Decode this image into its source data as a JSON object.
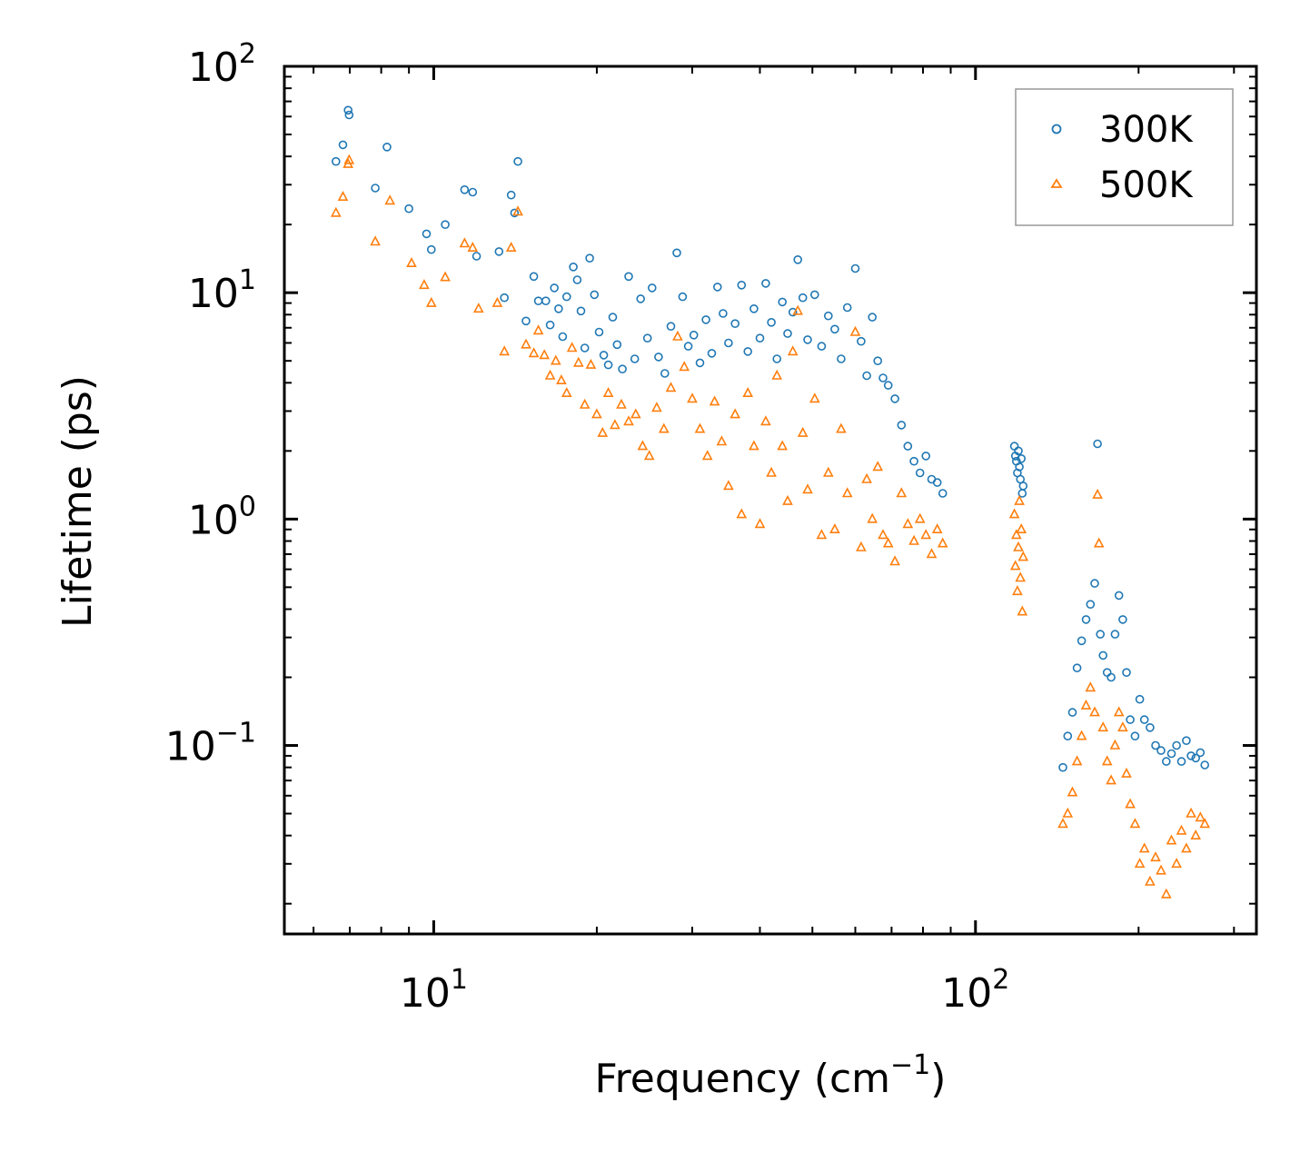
{
  "chart_data": {
    "type": "scatter",
    "title": "",
    "xlabel": "Frequency (cm",
    "xlabel_sup": "−1",
    "xlabel_end": ")",
    "ylabel": "Lifetime (ps)",
    "xscale": "log",
    "yscale": "log",
    "xlim": [
      5.3,
      330
    ],
    "ylim": [
      0.0147,
      100
    ],
    "grid": false,
    "legend_position": "top-right",
    "x_ticks": [
      {
        "value": 10,
        "base": "10",
        "exp": "1"
      },
      {
        "value": 100,
        "base": "10",
        "exp": "2"
      }
    ],
    "y_ticks": [
      {
        "value": 100,
        "base": "10",
        "exp": "2"
      },
      {
        "value": 10,
        "base": "10",
        "exp": "1"
      },
      {
        "value": 1,
        "base": "10",
        "exp": "0"
      },
      {
        "value": 0.1,
        "base": "10",
        "exp": "−1"
      }
    ],
    "series": [
      {
        "name": "300K",
        "color": "#1f77b4",
        "marker": "circle",
        "points": [
          [
            6.6,
            38
          ],
          [
            6.8,
            45
          ],
          [
            6.95,
            64
          ],
          [
            6.98,
            61
          ],
          [
            8.2,
            44
          ],
          [
            7.8,
            29
          ],
          [
            9.0,
            23.5
          ],
          [
            9.7,
            18.2
          ],
          [
            9.9,
            15.5
          ],
          [
            10.5,
            20
          ],
          [
            11.4,
            28.5
          ],
          [
            11.8,
            27.8
          ],
          [
            12.0,
            14.5
          ],
          [
            13.2,
            15.2
          ],
          [
            13.5,
            9.5
          ],
          [
            13.9,
            27
          ],
          [
            14.1,
            22.5
          ],
          [
            14.3,
            38
          ],
          [
            14.8,
            7.5
          ],
          [
            15.3,
            11.8
          ],
          [
            15.6,
            9.2
          ],
          [
            16.1,
            9.2
          ],
          [
            16.4,
            7.2
          ],
          [
            16.7,
            10.5
          ],
          [
            17.0,
            8.5
          ],
          [
            17.3,
            6.4
          ],
          [
            17.6,
            9.6
          ],
          [
            18.1,
            13
          ],
          [
            18.4,
            11.4
          ],
          [
            18.7,
            8.3
          ],
          [
            19.0,
            5.7
          ],
          [
            19.4,
            14.2
          ],
          [
            19.8,
            9.8
          ],
          [
            20.2,
            6.7
          ],
          [
            20.6,
            5.3
          ],
          [
            21.0,
            4.8
          ],
          [
            21.4,
            7.8
          ],
          [
            21.8,
            5.9
          ],
          [
            22.3,
            4.6
          ],
          [
            22.9,
            11.8
          ],
          [
            23.5,
            5.1
          ],
          [
            24.1,
            9.4
          ],
          [
            24.8,
            6.3
          ],
          [
            25.3,
            10.5
          ],
          [
            26.0,
            5.2
          ],
          [
            26.7,
            4.4
          ],
          [
            27.4,
            7.1
          ],
          [
            28.1,
            15
          ],
          [
            28.8,
            9.6
          ],
          [
            29.5,
            5.8
          ],
          [
            30.2,
            6.5
          ],
          [
            31.0,
            4.9
          ],
          [
            31.8,
            7.6
          ],
          [
            32.6,
            5.4
          ],
          [
            33.4,
            10.6
          ],
          [
            34.2,
            8.1
          ],
          [
            35.0,
            6.0
          ],
          [
            36.0,
            7.3
          ],
          [
            37.0,
            10.8
          ],
          [
            38.0,
            5.5
          ],
          [
            39.0,
            8.5
          ],
          [
            40.0,
            6.3
          ],
          [
            41.0,
            11
          ],
          [
            42.0,
            7.4
          ],
          [
            43.0,
            5.1
          ],
          [
            44.0,
            9.1
          ],
          [
            45.0,
            6.6
          ],
          [
            46.0,
            8.2
          ],
          [
            47.0,
            14
          ],
          [
            48.0,
            9.5
          ],
          [
            49.0,
            6.2
          ],
          [
            50.5,
            9.8
          ],
          [
            52.0,
            5.8
          ],
          [
            53.5,
            7.9
          ],
          [
            55.0,
            6.9
          ],
          [
            56.5,
            5.1
          ],
          [
            58.0,
            8.6
          ],
          [
            60.0,
            12.8
          ],
          [
            61.5,
            6.1
          ],
          [
            63.0,
            4.3
          ],
          [
            64.5,
            7.8
          ],
          [
            66.0,
            5.0
          ],
          [
            67.5,
            4.2
          ],
          [
            69.0,
            3.9
          ],
          [
            71.0,
            3.4
          ],
          [
            73.0,
            2.6
          ],
          [
            75.0,
            2.1
          ],
          [
            77.0,
            1.8
          ],
          [
            79.0,
            1.6
          ],
          [
            81.0,
            1.9
          ],
          [
            83.0,
            1.5
          ],
          [
            85.0,
            1.45
          ],
          [
            87.0,
            1.3
          ],
          [
            118,
            2.1
          ],
          [
            118.5,
            1.9
          ],
          [
            119,
            1.8
          ],
          [
            119.5,
            1.6
          ],
          [
            120,
            2.0
          ],
          [
            120.5,
            1.7
          ],
          [
            121,
            1.5
          ],
          [
            121.5,
            1.85
          ],
          [
            122,
            1.3
          ],
          [
            122.5,
            1.4
          ],
          [
            145,
            0.08
          ],
          [
            148,
            0.11
          ],
          [
            151,
            0.14
          ],
          [
            154,
            0.22
          ],
          [
            157,
            0.29
          ],
          [
            160,
            0.36
          ],
          [
            163,
            0.42
          ],
          [
            166,
            0.52
          ],
          [
            168,
            2.15
          ],
          [
            170,
            0.31
          ],
          [
            172,
            0.25
          ],
          [
            175,
            0.21
          ],
          [
            178,
            0.2
          ],
          [
            181,
            0.31
          ],
          [
            184,
            0.46
          ],
          [
            187,
            0.36
          ],
          [
            190,
            0.21
          ],
          [
            193,
            0.13
          ],
          [
            197,
            0.11
          ],
          [
            201,
            0.16
          ],
          [
            205,
            0.13
          ],
          [
            210,
            0.12
          ],
          [
            215,
            0.1
          ],
          [
            220,
            0.095
          ],
          [
            225,
            0.085
          ],
          [
            230,
            0.092
          ],
          [
            235,
            0.1
          ],
          [
            240,
            0.085
          ],
          [
            245,
            0.105
          ],
          [
            250,
            0.09
          ],
          [
            255,
            0.088
          ],
          [
            260,
            0.093
          ],
          [
            265,
            0.082
          ]
        ]
      },
      {
        "name": "500K",
        "color": "#ff7f0e",
        "marker": "triangle",
        "points": [
          [
            6.6,
            22.5
          ],
          [
            6.8,
            26.5
          ],
          [
            6.95,
            37
          ],
          [
            6.98,
            38.5
          ],
          [
            7.8,
            16.8
          ],
          [
            8.3,
            25.5
          ],
          [
            9.1,
            13.5
          ],
          [
            9.6,
            10.8
          ],
          [
            9.9,
            9.0
          ],
          [
            10.5,
            11.7
          ],
          [
            11.4,
            16.5
          ],
          [
            11.8,
            15.8
          ],
          [
            12.1,
            8.5
          ],
          [
            13.1,
            9.0
          ],
          [
            13.5,
            5.5
          ],
          [
            13.9,
            15.8
          ],
          [
            14.3,
            22.8
          ],
          [
            14.8,
            5.9
          ],
          [
            15.3,
            5.4
          ],
          [
            15.6,
            6.8
          ],
          [
            16.0,
            5.3
          ],
          [
            16.4,
            4.3
          ],
          [
            16.8,
            5.0
          ],
          [
            17.2,
            4.1
          ],
          [
            17.6,
            3.6
          ],
          [
            18.0,
            5.7
          ],
          [
            18.5,
            4.9
          ],
          [
            19.0,
            3.2
          ],
          [
            19.5,
            4.8
          ],
          [
            20.0,
            2.9
          ],
          [
            20.5,
            2.4
          ],
          [
            21.0,
            3.6
          ],
          [
            21.6,
            2.6
          ],
          [
            22.2,
            3.2
          ],
          [
            22.9,
            2.7
          ],
          [
            23.6,
            2.9
          ],
          [
            24.3,
            2.1
          ],
          [
            25.0,
            1.9
          ],
          [
            25.8,
            3.1
          ],
          [
            26.6,
            2.5
          ],
          [
            27.4,
            3.8
          ],
          [
            28.2,
            6.4
          ],
          [
            29.0,
            4.7
          ],
          [
            30.0,
            3.4
          ],
          [
            31.0,
            2.5
          ],
          [
            32.0,
            1.9
          ],
          [
            33.0,
            3.3
          ],
          [
            34.0,
            2.2
          ],
          [
            35.0,
            1.4
          ],
          [
            36.0,
            2.9
          ],
          [
            37.0,
            1.05
          ],
          [
            38.0,
            3.6
          ],
          [
            39.0,
            2.1
          ],
          [
            40.0,
            0.95
          ],
          [
            41.0,
            2.7
          ],
          [
            42.0,
            1.6
          ],
          [
            43.0,
            4.3
          ],
          [
            44.0,
            2.1
          ],
          [
            45.0,
            1.2
          ],
          [
            46.0,
            5.5
          ],
          [
            47.0,
            8.3
          ],
          [
            48.0,
            2.4
          ],
          [
            49.0,
            1.35
          ],
          [
            50.5,
            3.4
          ],
          [
            52.0,
            0.85
          ],
          [
            53.5,
            1.6
          ],
          [
            55.0,
            0.9
          ],
          [
            56.5,
            2.5
          ],
          [
            58.0,
            1.3
          ],
          [
            60.0,
            6.7
          ],
          [
            61.5,
            0.75
          ],
          [
            63.0,
            1.5
          ],
          [
            64.5,
            1.0
          ],
          [
            66.0,
            1.7
          ],
          [
            67.5,
            0.85
          ],
          [
            69.0,
            0.78
          ],
          [
            71.0,
            0.65
          ],
          [
            73.0,
            1.3
          ],
          [
            75.0,
            0.95
          ],
          [
            77.0,
            0.8
          ],
          [
            79.0,
            1.0
          ],
          [
            81.0,
            0.85
          ],
          [
            83.0,
            0.7
          ],
          [
            85.0,
            0.9
          ],
          [
            87.0,
            0.78
          ],
          [
            118,
            1.05
          ],
          [
            118.5,
            0.62
          ],
          [
            119,
            0.85
          ],
          [
            119.5,
            0.48
          ],
          [
            120,
            0.75
          ],
          [
            120.5,
            1.2
          ],
          [
            121,
            0.55
          ],
          [
            121.5,
            0.9
          ],
          [
            122,
            0.39
          ],
          [
            122.5,
            0.68
          ],
          [
            145,
            0.045
          ],
          [
            148,
            0.05
          ],
          [
            151,
            0.062
          ],
          [
            154,
            0.085
          ],
          [
            157,
            0.11
          ],
          [
            160,
            0.15
          ],
          [
            163,
            0.18
          ],
          [
            166,
            0.14
          ],
          [
            168,
            1.28
          ],
          [
            169,
            0.78
          ],
          [
            172,
            0.12
          ],
          [
            175,
            0.085
          ],
          [
            178,
            0.07
          ],
          [
            181,
            0.1
          ],
          [
            184,
            0.14
          ],
          [
            187,
            0.12
          ],
          [
            190,
            0.075
          ],
          [
            193,
            0.055
          ],
          [
            197,
            0.045
          ],
          [
            201,
            0.03
          ],
          [
            205,
            0.035
          ],
          [
            210,
            0.025
          ],
          [
            215,
            0.032
          ],
          [
            220,
            0.028
          ],
          [
            225,
            0.022
          ],
          [
            230,
            0.038
          ],
          [
            235,
            0.03
          ],
          [
            240,
            0.042
          ],
          [
            245,
            0.035
          ],
          [
            250,
            0.05
          ],
          [
            255,
            0.04
          ],
          [
            260,
            0.048
          ],
          [
            265,
            0.045
          ]
        ]
      }
    ]
  }
}
